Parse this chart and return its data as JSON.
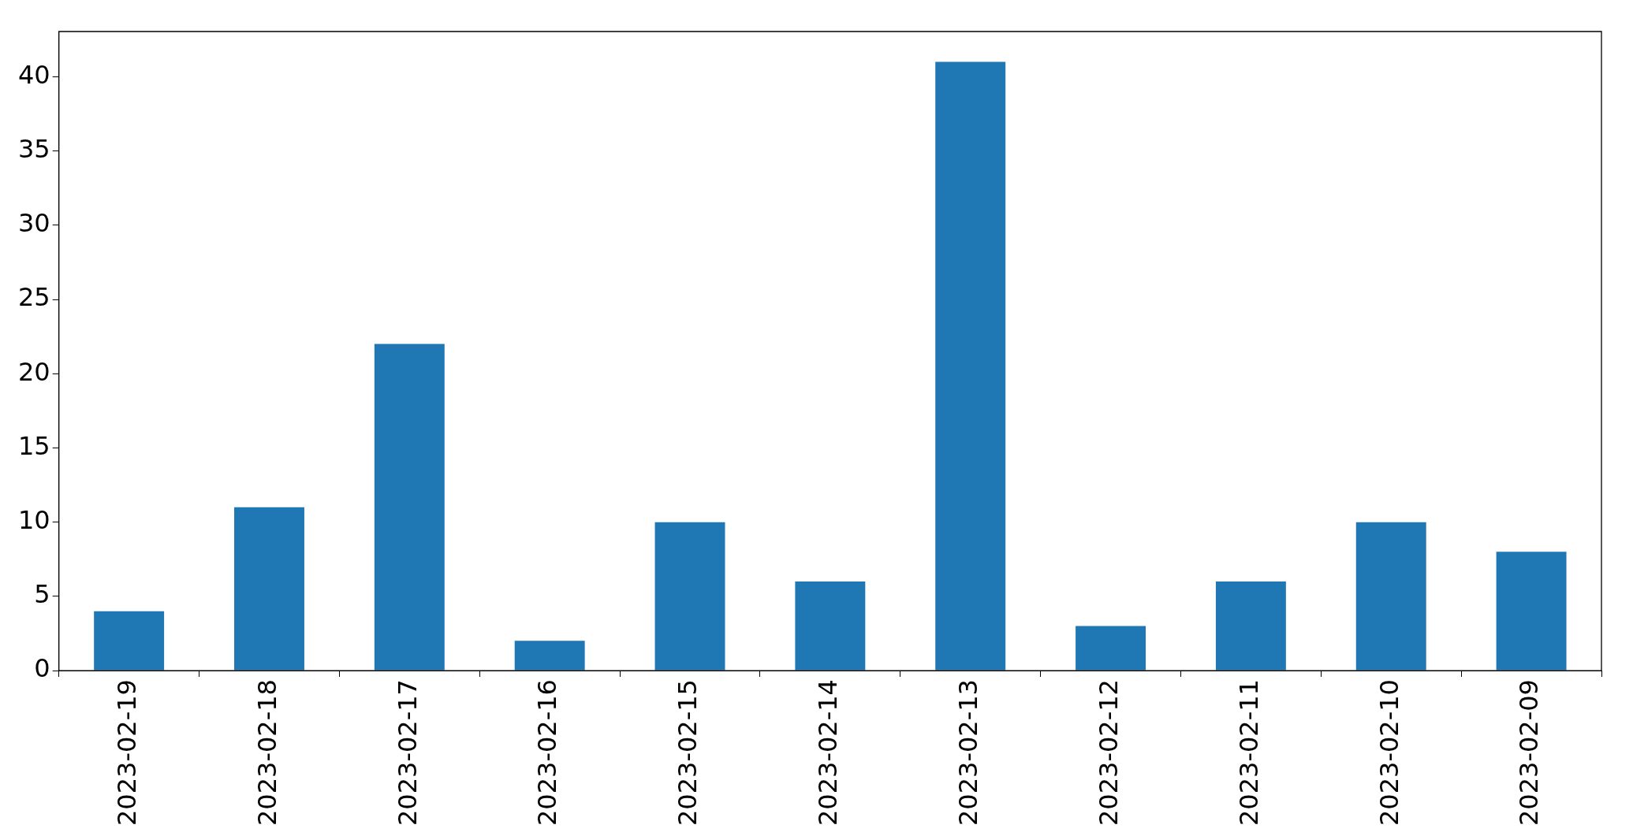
{
  "chart_data": {
    "type": "bar",
    "categories": [
      "2023-02-19",
      "2023-02-18",
      "2023-02-17",
      "2023-02-16",
      "2023-02-15",
      "2023-02-14",
      "2023-02-13",
      "2023-02-12",
      "2023-02-11",
      "2023-02-10",
      "2023-02-09"
    ],
    "values": [
      4,
      11,
      22,
      2,
      10,
      6,
      41,
      3,
      6,
      10,
      8
    ],
    "color": "#1f77b4",
    "ylim": [
      0,
      43.05
    ],
    "yticks": [
      0,
      5,
      10,
      15,
      20,
      25,
      30,
      35,
      40
    ],
    "grid": false,
    "legend": false
  }
}
